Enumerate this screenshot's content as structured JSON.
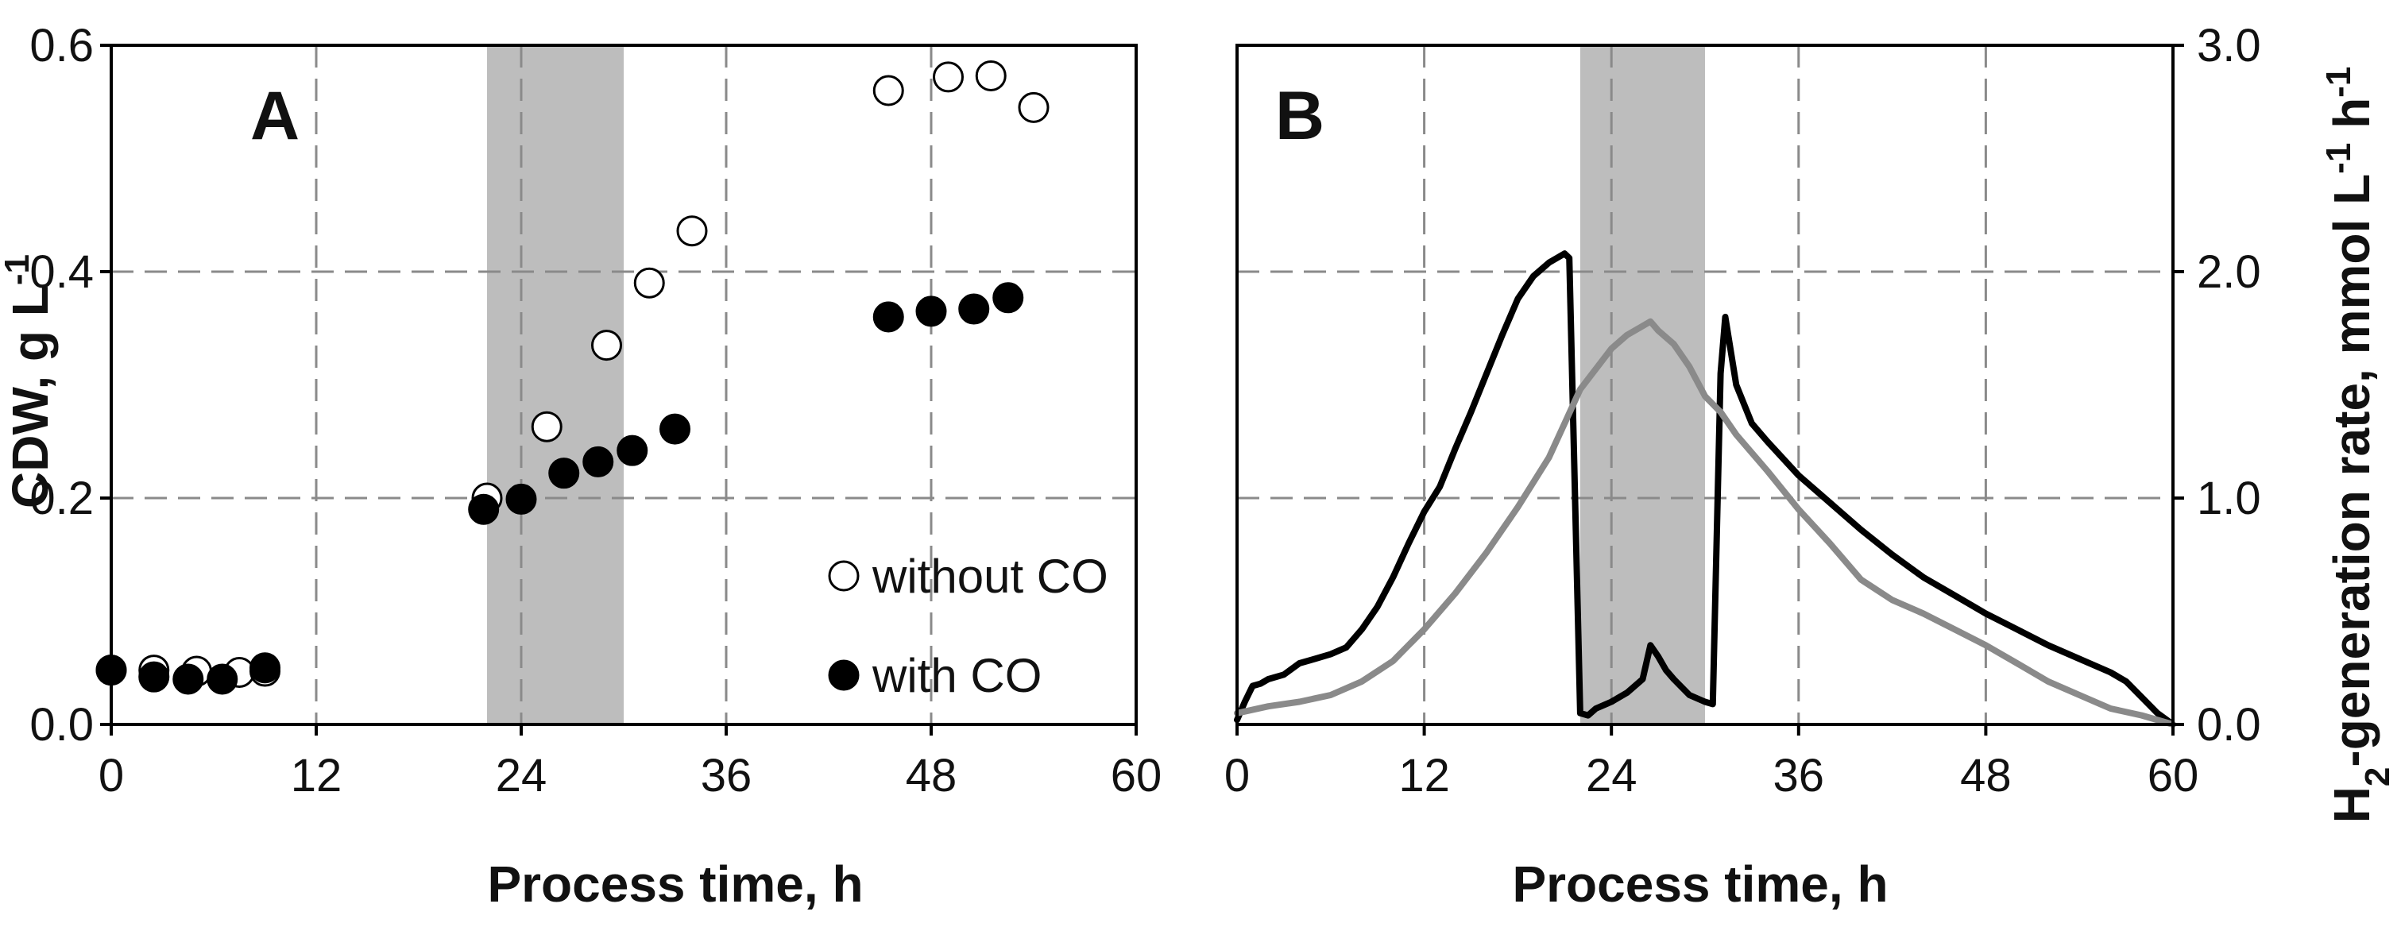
{
  "colors": {
    "shade": "#bdbdbd",
    "grid": "#8a8a8a",
    "frame": "#000000",
    "filled_marker": "#000000",
    "open_marker": "#ffffff",
    "line_dark": "#000000",
    "line_gray": "#8a8a8a"
  },
  "chart_data": [
    {
      "type": "scatter",
      "panel_label": "A",
      "xlabel": "Process time, h",
      "ylabel": "CDW, g L",
      "ylabel_sup": "-1",
      "xlim": [
        0,
        60
      ],
      "ylim": [
        0,
        0.6
      ],
      "xticks": [
        "0",
        "12",
        "24",
        "36",
        "48",
        "60"
      ],
      "yticks": [
        "0.0",
        "0.2",
        "0.4",
        "0.6"
      ],
      "grid": true,
      "shaded_interval": [
        22,
        30
      ],
      "legend_position": "lower-right",
      "series": [
        {
          "name": "without CO",
          "marker": "open-circle",
          "x": [
            0,
            2.5,
            5,
            7.5,
            9,
            22,
            25.5,
            29,
            31.5,
            34,
            45.5,
            49,
            51.5,
            54
          ],
          "y": [
            0.048,
            0.048,
            0.047,
            0.046,
            0.047,
            0.2,
            0.263,
            0.335,
            0.39,
            0.436,
            0.56,
            0.572,
            0.573,
            0.545
          ]
        },
        {
          "name": "with CO",
          "marker": "filled-circle",
          "x": [
            0,
            2.5,
            4.5,
            6.5,
            9,
            21.8,
            24,
            26.5,
            28.5,
            30.5,
            33,
            45.5,
            48,
            50.5,
            52.5
          ],
          "y": [
            0.048,
            0.042,
            0.04,
            0.04,
            0.05,
            0.19,
            0.199,
            0.222,
            0.232,
            0.242,
            0.261,
            0.36,
            0.365,
            0.367,
            0.377
          ]
        }
      ]
    },
    {
      "type": "line",
      "panel_label": "B",
      "xlabel": "Process time, h",
      "ylabel_prefix": "H",
      "ylabel_sub": "2",
      "ylabel_main": "-generation rate, mmol L",
      "ylabel_sup1": "-1",
      "ylabel_mid": " h",
      "ylabel_sup2": "-1",
      "xlim": [
        0,
        60
      ],
      "ylim": [
        0,
        3
      ],
      "xticks": [
        "0",
        "12",
        "24",
        "36",
        "48",
        "60"
      ],
      "yticks": [
        "0.0",
        "1.0",
        "2.0",
        "3.0"
      ],
      "y_axis_side": "right",
      "grid": true,
      "shaded_interval": [
        22,
        30
      ],
      "series": [
        {
          "color": "#000000",
          "x": [
            0,
            0.5,
            1,
            1.5,
            2,
            3,
            4,
            5,
            6,
            7,
            8,
            9,
            10,
            11,
            12,
            13,
            14,
            15,
            16,
            17,
            18,
            19,
            20,
            21,
            21.3,
            22,
            22.5,
            23,
            24,
            25,
            26,
            26.5,
            27,
            27.5,
            28,
            29,
            30,
            30.5,
            31,
            31.3,
            32,
            33,
            34,
            36,
            38,
            40,
            42,
            44,
            46,
            48,
            50,
            52,
            54,
            56,
            57,
            58,
            59,
            60
          ],
          "y": [
            0.02,
            0.1,
            0.17,
            0.18,
            0.2,
            0.22,
            0.27,
            0.29,
            0.31,
            0.34,
            0.42,
            0.52,
            0.65,
            0.8,
            0.94,
            1.05,
            1.22,
            1.38,
            1.55,
            1.72,
            1.88,
            1.98,
            2.04,
            2.08,
            2.06,
            0.05,
            0.04,
            0.07,
            0.1,
            0.14,
            0.2,
            0.35,
            0.3,
            0.24,
            0.2,
            0.13,
            0.1,
            0.09,
            1.55,
            1.8,
            1.5,
            1.33,
            1.25,
            1.1,
            0.98,
            0.86,
            0.75,
            0.65,
            0.57,
            0.49,
            0.42,
            0.35,
            0.29,
            0.23,
            0.19,
            0.12,
            0.05,
            0.0
          ]
        },
        {
          "color": "#8a8a8a",
          "x": [
            0,
            2,
            4,
            6,
            8,
            10,
            12,
            14,
            16,
            18,
            20,
            22,
            24,
            25,
            26,
            26.5,
            27,
            28,
            29,
            30,
            31,
            32,
            34,
            36,
            38,
            40,
            42,
            44,
            46,
            48,
            50,
            52,
            54,
            56,
            58,
            60
          ],
          "y": [
            0.05,
            0.08,
            0.1,
            0.13,
            0.19,
            0.28,
            0.42,
            0.58,
            0.76,
            0.96,
            1.18,
            1.48,
            1.66,
            1.72,
            1.76,
            1.78,
            1.74,
            1.68,
            1.58,
            1.45,
            1.38,
            1.28,
            1.12,
            0.95,
            0.8,
            0.64,
            0.55,
            0.49,
            0.42,
            0.35,
            0.27,
            0.19,
            0.13,
            0.07,
            0.04,
            0.0
          ]
        }
      ]
    }
  ],
  "legend": {
    "without_label": "without CO",
    "with_label": "with CO"
  }
}
